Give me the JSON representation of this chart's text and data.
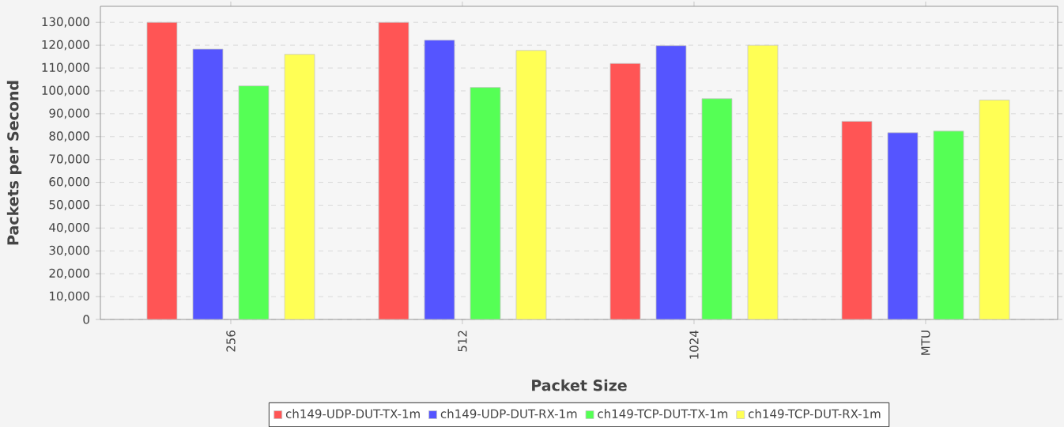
{
  "chart_data": {
    "type": "bar",
    "xlabel": "Packet Size",
    "ylabel": "Packets per Second",
    "categories": [
      "256",
      "512",
      "1024",
      "MTU"
    ],
    "series": [
      {
        "name": "ch149-UDP-DUT-TX-1m",
        "color": "#ff5555",
        "values": [
          130000,
          130000,
          112000,
          86700
        ]
      },
      {
        "name": "ch149-UDP-DUT-RX-1m",
        "color": "#5555ff",
        "values": [
          118300,
          122200,
          119800,
          81700
        ]
      },
      {
        "name": "ch149-TCP-DUT-TX-1m",
        "color": "#55ff55",
        "values": [
          102200,
          101500,
          96600,
          82400
        ]
      },
      {
        "name": "ch149-TCP-DUT-RX-1m",
        "color": "#ffff55",
        "values": [
          116000,
          117700,
          120000,
          96000
        ]
      }
    ],
    "ylim": [
      0,
      137000
    ],
    "yticks": [
      0,
      {
        "value": 10000,
        "label": "10,000"
      },
      {
        "value": 20000,
        "label": "20,000"
      },
      {
        "value": 30000,
        "label": "30,000"
      },
      {
        "value": 40000,
        "label": "40,000"
      },
      {
        "value": 50000,
        "label": "50,000"
      },
      {
        "value": 60000,
        "label": "60,000"
      },
      {
        "value": 70000,
        "label": "70,000"
      },
      {
        "value": 80000,
        "label": "80,000"
      },
      {
        "value": 90000,
        "label": "90,000"
      },
      {
        "value": 100000,
        "label": "100,000"
      },
      {
        "value": 110000,
        "label": "110,000"
      },
      {
        "value": 120000,
        "label": "120,000"
      },
      {
        "value": 130000,
        "label": "130,000"
      }
    ],
    "grid": "y",
    "legend": "bottom"
  }
}
